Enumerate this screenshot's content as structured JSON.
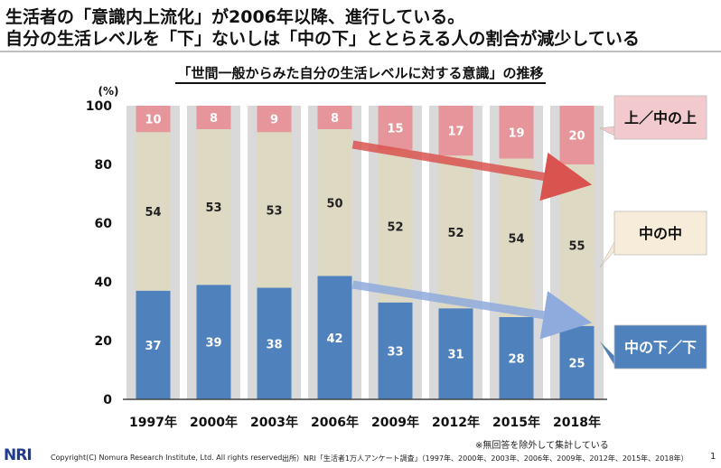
{
  "headline": {
    "line1": "生活者の「意識内上流化」が2006年以降、進行している。",
    "line2": "自分の生活レベルを「下」ないしは「中の下」ととらえる人の割合が減少している"
  },
  "chart_data": {
    "type": "bar",
    "stacked": true,
    "title": "「世間一般からみた自分の生活レベルに対する意識」の推移",
    "ylabel": "(%)",
    "ylim": [
      0,
      100
    ],
    "yticks": [
      "0",
      "20",
      "40",
      "60",
      "80",
      "100"
    ],
    "categories": [
      "1997年",
      "2000年",
      "2003年",
      "2006年",
      "2009年",
      "2012年",
      "2015年",
      "2018年"
    ],
    "series": [
      {
        "name": "中の下／下",
        "values": [
          37,
          39,
          38,
          42,
          33,
          31,
          28,
          25
        ],
        "color": "#4f81bd",
        "label_color": "#ffffff"
      },
      {
        "name": "中の中",
        "values": [
          54,
          53,
          53,
          50,
          52,
          52,
          54,
          55
        ],
        "color": "#ddd9c3",
        "label_color": "#222222"
      },
      {
        "name": "上／中の上",
        "values": [
          10,
          8,
          9,
          8,
          15,
          17,
          19,
          20
        ],
        "color": "#e6959a",
        "label_color": "#ffffff"
      }
    ],
    "background_band_color": "#d9d9d9",
    "callouts": [
      {
        "series": "上／中の上",
        "fill": "#f2c9cd"
      },
      {
        "series": "中の中",
        "fill": "#f7ecd9"
      },
      {
        "series": "中の下／下",
        "fill": "#4f81bd"
      }
    ],
    "trend_arrows": [
      {
        "series": "上／中の上",
        "color": "#d9534f"
      },
      {
        "series": "中の下／下",
        "color": "#8faadc"
      }
    ]
  },
  "footer": {
    "note": "※無回答を除外して集計している",
    "source": "出所）NRI「生活者1万人アンケート調査」（1997年、2000年、2003年、2006年、2009年、2012年、2015年、2018年）",
    "copyright": "Copyright(C) Nomura Research Institute, Ltd. All rights reserved.",
    "logo": "NRI",
    "page": "1"
  }
}
